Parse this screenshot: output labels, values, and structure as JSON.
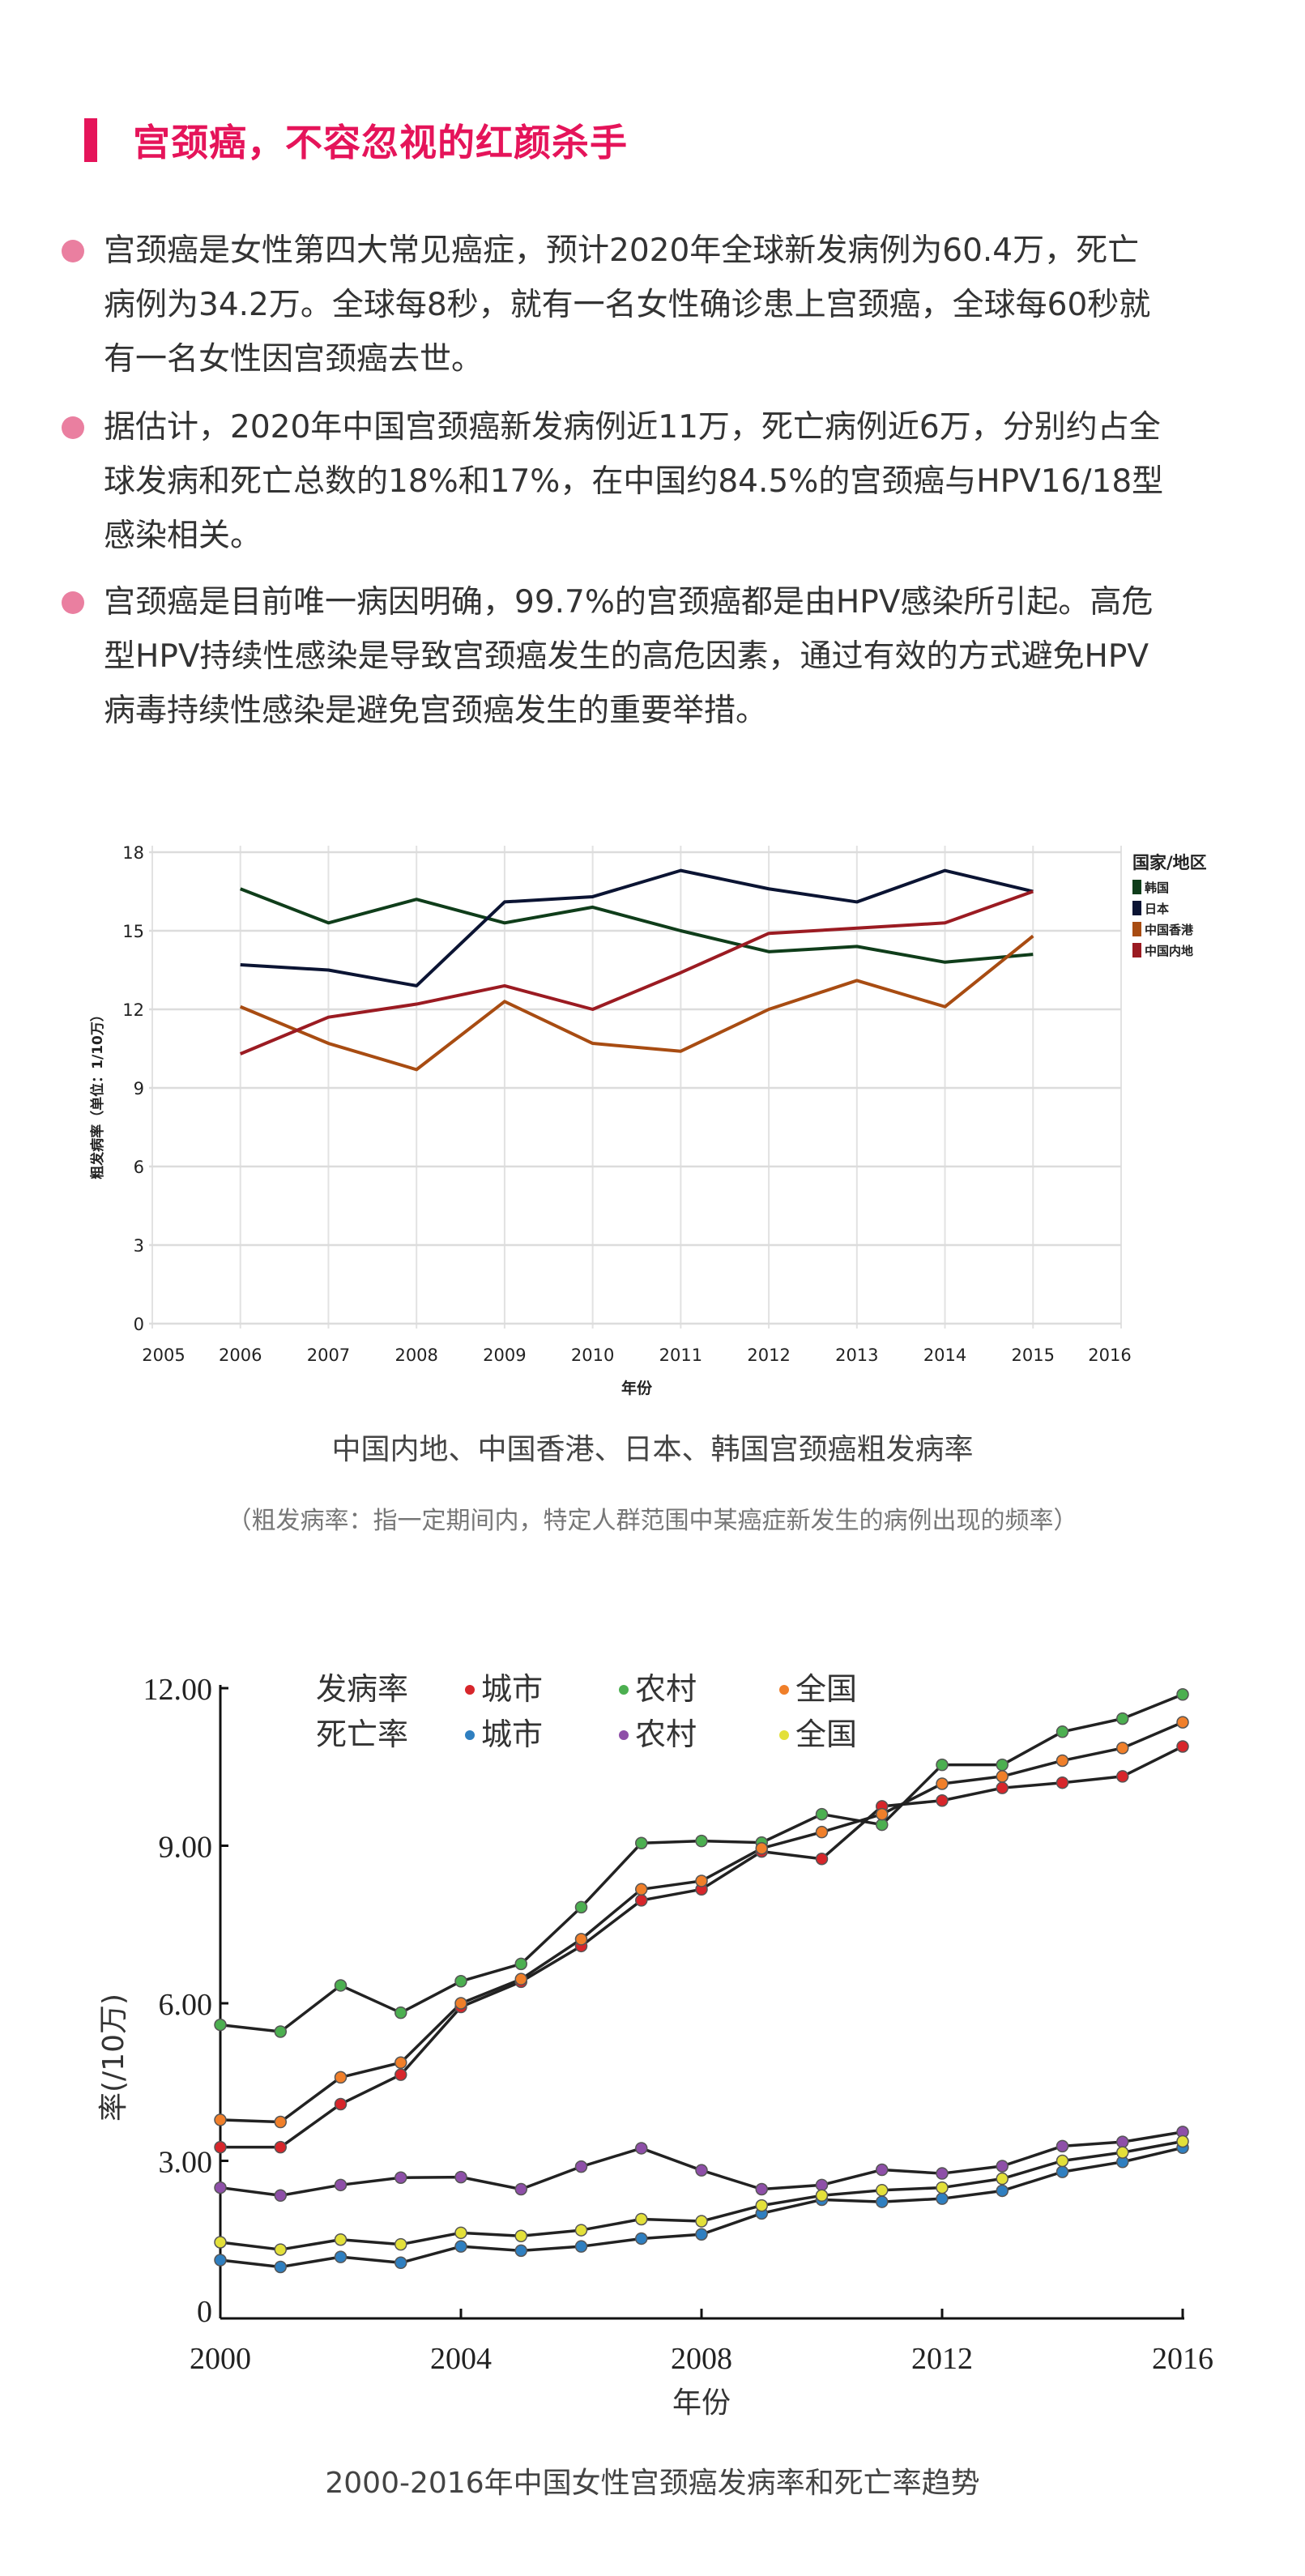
{
  "title": "宫颈癌，不容忽视的红颜杀手",
  "colors": {
    "accent": "#e5145a",
    "bullet": "#ea7fa0"
  },
  "bullets": [
    {
      "lines": [
        "宫颈癌是女性第四大常见癌症，预计2020年全球新发病例为60.4万，死亡",
        "病例为34.2万。全球每8秒，就有一名女性确诊患上宫颈癌，全球每60秒就",
        "有一名女性因宫颈癌去世。"
      ]
    },
    {
      "lines": [
        "据估计，2020年中国宫颈癌新发病例近11万，死亡病例近6万，分别约占全",
        "球发病和死亡总数的18%和17%，在中国约84.5%的宫颈癌与HPV16/18型",
        "感染相关。"
      ]
    },
    {
      "lines": [
        "宫颈癌是目前唯一病因明确，99.7%的宫颈癌都是由HPV感染所引起。高危",
        "型HPV持续性感染是导致宫颈癌发生的高危因素，通过有效的方式避免HPV",
        "病毒持续性感染是避免宫颈癌发生的重要举措。"
      ]
    }
  ],
  "chart1_caption": "中国内地、中国香港、日本、韩国宫颈癌粗发病率",
  "chart1_note": "（粗发病率：指一定期间内，特定人群范围中某癌症新发生的病例出现的频率）",
  "chart2_caption": "2000-2016年中国女性宫颈癌发病率和死亡率趋势",
  "chart_data": [
    {
      "type": "line",
      "title": "中国内地、中国香港、日本、韩国宫颈癌粗发病率",
      "xlabel": "年份",
      "ylabel": "粗发病率（单位：1/10万）",
      "xlim": [
        2005,
        2016
      ],
      "ylim": [
        0,
        18
      ],
      "xticks": [
        2005,
        2006,
        2007,
        2008,
        2009,
        2010,
        2011,
        2012,
        2013,
        2014,
        2015,
        2016
      ],
      "yticks": [
        0,
        3,
        6,
        9,
        12,
        15,
        18
      ],
      "grid": true,
      "legend_title": "国家/地区",
      "legend_position": "right",
      "x": [
        2006,
        2007,
        2008,
        2009,
        2010,
        2011,
        2012,
        2013,
        2014,
        2015
      ],
      "series": [
        {
          "name": "韩国",
          "color": "#0f3d1a",
          "values": [
            16.6,
            15.3,
            16.2,
            15.3,
            15.9,
            15.0,
            14.2,
            14.4,
            13.8,
            14.1
          ]
        },
        {
          "name": "日本",
          "color": "#0b1433",
          "values": [
            13.7,
            13.5,
            12.9,
            16.1,
            16.3,
            17.3,
            16.6,
            16.1,
            17.3,
            16.5
          ]
        },
        {
          "name": "中国香港",
          "color": "#a84c12",
          "values": [
            12.1,
            10.7,
            9.7,
            12.3,
            10.7,
            10.4,
            12.0,
            13.1,
            12.1,
            14.8
          ]
        },
        {
          "name": "中国内地",
          "color": "#9b1b22",
          "values": [
            10.3,
            11.7,
            12.2,
            12.9,
            12.0,
            13.4,
            14.9,
            15.1,
            15.3,
            16.5
          ]
        }
      ]
    },
    {
      "type": "line",
      "title": "2000-2016年中国女性宫颈癌发病率和死亡率趋势",
      "xlabel": "年份",
      "ylabel": "率(/10万)",
      "xlim": [
        2000,
        2016
      ],
      "ylim": [
        0,
        12
      ],
      "xticks": [
        2000,
        2004,
        2008,
        2012,
        2016
      ],
      "yticks": [
        0,
        3,
        6,
        9,
        12
      ],
      "ytick_labels": [
        "0",
        "3.00",
        "6.00",
        "9.00",
        "12.00"
      ],
      "grid": false,
      "legend_position": "top-left",
      "legend_groups": [
        "发病率",
        "死亡率"
      ],
      "x": [
        2000,
        2001,
        2002,
        2003,
        2004,
        2005,
        2006,
        2007,
        2008,
        2009,
        2010,
        2011,
        2012,
        2013,
        2014,
        2015,
        2016
      ],
      "series": [
        {
          "group": "发病率",
          "name": "城市",
          "color": "#d7262b",
          "values": [
            3.26,
            3.26,
            4.08,
            4.64,
            5.93,
            6.41,
            7.09,
            7.96,
            8.17,
            8.89,
            8.75,
            9.75,
            9.86,
            10.1,
            10.2,
            10.32,
            10.89
          ]
        },
        {
          "group": "发病率",
          "name": "农村",
          "color": "#4caf50",
          "values": [
            5.59,
            5.46,
            6.34,
            5.82,
            6.42,
            6.75,
            7.83,
            9.05,
            9.09,
            9.06,
            9.6,
            9.4,
            10.54,
            10.54,
            11.17,
            11.42,
            11.88
          ]
        },
        {
          "group": "发病率",
          "name": "全国",
          "color": "#f07f2a",
          "values": [
            3.78,
            3.74,
            4.59,
            4.87,
            6.0,
            6.46,
            7.22,
            8.17,
            8.33,
            8.95,
            9.26,
            9.6,
            10.18,
            10.32,
            10.62,
            10.86,
            11.35
          ]
        },
        {
          "group": "死亡率",
          "name": "城市",
          "color": "#2f7fc0",
          "values": [
            1.11,
            0.98,
            1.17,
            1.06,
            1.37,
            1.29,
            1.37,
            1.52,
            1.6,
            2.0,
            2.26,
            2.22,
            2.28,
            2.43,
            2.79,
            2.98,
            3.25
          ]
        },
        {
          "group": "死亡率",
          "name": "农村",
          "color": "#8e4fa8",
          "values": [
            2.49,
            2.34,
            2.54,
            2.68,
            2.69,
            2.46,
            2.89,
            3.24,
            2.82,
            2.46,
            2.54,
            2.83,
            2.76,
            2.9,
            3.28,
            3.36,
            3.55
          ]
        },
        {
          "group": "死亡率",
          "name": "全国",
          "color": "#e3e03a",
          "values": [
            1.45,
            1.31,
            1.5,
            1.41,
            1.63,
            1.57,
            1.68,
            1.89,
            1.85,
            2.15,
            2.34,
            2.44,
            2.49,
            2.66,
            3.0,
            3.16,
            3.37
          ]
        }
      ]
    }
  ]
}
